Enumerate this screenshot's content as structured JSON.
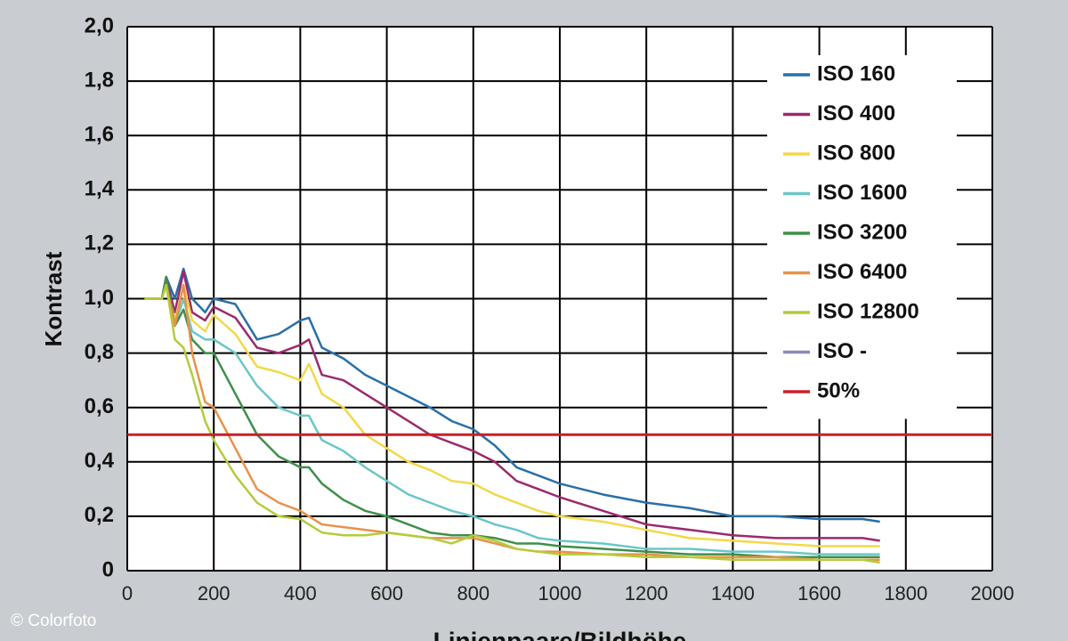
{
  "chart_data": {
    "type": "line",
    "y_label": "Kontrast",
    "x_label": "Linienpaare/Bildhöhe",
    "source": "© Colorfoto",
    "xlim": [
      0,
      2000
    ],
    "ylim": [
      0,
      2
    ],
    "xticks": [
      0,
      200,
      400,
      600,
      800,
      1000,
      1200,
      1400,
      1600,
      1800,
      2000
    ],
    "yticks": [
      0,
      {
        "value": 0.2,
        "label": "0,2"
      },
      {
        "value": 0.4,
        "label": "0,4"
      },
      {
        "value": 0.6,
        "label": "0,6"
      },
      {
        "value": 0.8,
        "label": "0,8"
      },
      {
        "value": 1,
        "label": "1,0"
      },
      {
        "value": 1.2,
        "label": "1,2"
      },
      {
        "value": 1.4,
        "label": "1,4"
      },
      {
        "value": 1.6,
        "label": "1,6"
      },
      {
        "value": 1.8,
        "label": "1,8"
      },
      {
        "value": 2,
        "label": "2,0"
      }
    ],
    "grid": true,
    "legend": "upper right",
    "x": [
      40,
      80,
      90,
      110,
      130,
      150,
      180,
      200,
      250,
      300,
      350,
      400,
      420,
      450,
      500,
      550,
      600,
      650,
      700,
      750,
      800,
      850,
      900,
      950,
      1000,
      1100,
      1200,
      1300,
      1400,
      1500,
      1600,
      1700,
      1740
    ],
    "series": [
      {
        "name": "ISO 160",
        "color": "#2a6fa8",
        "values": [
          1.0,
          1.0,
          1.08,
          1.0,
          1.11,
          1.0,
          0.95,
          1.0,
          0.98,
          0.85,
          0.87,
          0.92,
          0.93,
          0.82,
          0.78,
          0.72,
          0.68,
          0.64,
          0.6,
          0.55,
          0.52,
          0.46,
          0.38,
          0.35,
          0.32,
          0.28,
          0.25,
          0.23,
          0.2,
          0.2,
          0.19,
          0.19,
          0.18
        ]
      },
      {
        "name": "ISO 400",
        "color": "#9b2a6e",
        "values": [
          1.0,
          1.0,
          1.08,
          0.95,
          1.1,
          0.95,
          0.92,
          0.97,
          0.93,
          0.82,
          0.8,
          0.83,
          0.85,
          0.72,
          0.7,
          0.65,
          0.6,
          0.55,
          0.5,
          0.47,
          0.44,
          0.4,
          0.33,
          0.3,
          0.27,
          0.22,
          0.17,
          0.15,
          0.13,
          0.12,
          0.12,
          0.12,
          0.11
        ]
      },
      {
        "name": "ISO 800",
        "color": "#f3d84a",
        "values": [
          1.0,
          1.0,
          1.06,
          0.92,
          1.05,
          0.92,
          0.88,
          0.94,
          0.87,
          0.75,
          0.73,
          0.7,
          0.76,
          0.65,
          0.6,
          0.5,
          0.45,
          0.4,
          0.37,
          0.33,
          0.32,
          0.28,
          0.25,
          0.22,
          0.2,
          0.18,
          0.15,
          0.12,
          0.11,
          0.1,
          0.09,
          0.09,
          0.09
        ]
      },
      {
        "name": "ISO 1600",
        "color": "#6cc6c9",
        "values": [
          1.0,
          1.0,
          1.05,
          0.9,
          1.0,
          0.88,
          0.85,
          0.85,
          0.8,
          0.68,
          0.6,
          0.57,
          0.57,
          0.48,
          0.44,
          0.38,
          0.33,
          0.28,
          0.25,
          0.22,
          0.2,
          0.17,
          0.15,
          0.12,
          0.11,
          0.1,
          0.08,
          0.08,
          0.07,
          0.07,
          0.06,
          0.06,
          0.06
        ]
      },
      {
        "name": "ISO 3200",
        "color": "#3f8f4a",
        "values": [
          1.0,
          1.0,
          1.08,
          0.9,
          0.96,
          0.85,
          0.8,
          0.8,
          0.65,
          0.5,
          0.42,
          0.38,
          0.38,
          0.32,
          0.26,
          0.22,
          0.2,
          0.17,
          0.14,
          0.13,
          0.13,
          0.12,
          0.1,
          0.1,
          0.09,
          0.08,
          0.07,
          0.06,
          0.06,
          0.05,
          0.05,
          0.05,
          0.05
        ]
      },
      {
        "name": "ISO 6400",
        "color": "#e8924a",
        "values": [
          1.0,
          1.0,
          1.05,
          0.9,
          1.05,
          0.8,
          0.62,
          0.6,
          0.45,
          0.3,
          0.25,
          0.22,
          0.2,
          0.17,
          0.16,
          0.15,
          0.14,
          0.13,
          0.12,
          0.12,
          0.12,
          0.1,
          0.08,
          0.07,
          0.07,
          0.06,
          0.06,
          0.05,
          0.05,
          0.05,
          0.04,
          0.04,
          0.04
        ]
      },
      {
        "name": "ISO 12800",
        "color": "#b4cc3a",
        "values": [
          1.0,
          1.0,
          1.05,
          0.85,
          0.82,
          0.72,
          0.55,
          0.48,
          0.35,
          0.25,
          0.2,
          0.19,
          0.17,
          0.14,
          0.13,
          0.13,
          0.14,
          0.13,
          0.12,
          0.1,
          0.13,
          0.11,
          0.08,
          0.07,
          0.06,
          0.06,
          0.05,
          0.05,
          0.04,
          0.04,
          0.04,
          0.04,
          0.03
        ]
      },
      {
        "name": "ISO -",
        "color": "#8a8ab8",
        "values": [
          null,
          null,
          null,
          null,
          null,
          null,
          null,
          null,
          null,
          null,
          null,
          null,
          null,
          null,
          null,
          null,
          null,
          null,
          null,
          null,
          null,
          null,
          null,
          null,
          null,
          null,
          null,
          null,
          null,
          null,
          null,
          null,
          null
        ]
      }
    ],
    "reference_line": {
      "name": "50%",
      "value": 0.5,
      "color": "#c8202a"
    }
  }
}
